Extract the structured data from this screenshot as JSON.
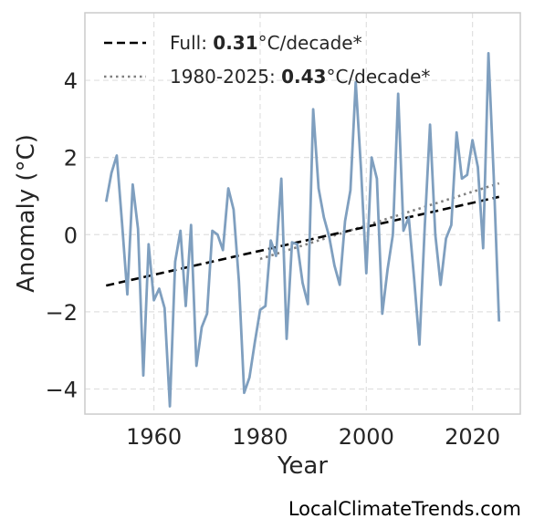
{
  "chart_data": {
    "type": "line",
    "xlabel": "Year",
    "ylabel": "Anomaly (°C)",
    "xlim": [
      1947,
      2029
    ],
    "ylim": [
      -4.65,
      5.75
    ],
    "xticks": [
      1960,
      1980,
      2000,
      2020
    ],
    "yticks": [
      -4,
      -2,
      0,
      2,
      4
    ],
    "ytick_labels": [
      "−4",
      "−2",
      "0",
      "2",
      "4"
    ],
    "grid": true,
    "legend_position": "top-left",
    "colors": {
      "series": "#7f9fbf",
      "full_trend": "#000000",
      "recent_trend": "#808080"
    },
    "series": [
      {
        "x": [
          1951,
          1952,
          1953,
          1954,
          1955,
          1956,
          1957,
          1958,
          1959,
          1960,
          1961,
          1962,
          1963,
          1964,
          1965,
          1966,
          1967,
          1968,
          1969,
          1970,
          1971,
          1972,
          1973,
          1974,
          1975,
          1976,
          1977,
          1978,
          1979,
          1980,
          1981,
          1982,
          1983,
          1984,
          1985,
          1986,
          1987,
          1988,
          1989,
          1990,
          1991,
          1992,
          1993,
          1994,
          1995,
          1996,
          1997,
          1998,
          1999,
          2000,
          2001,
          2002,
          2003,
          2004,
          2005,
          2006,
          2007,
          2008,
          2009,
          2010,
          2011,
          2012,
          2013,
          2014,
          2015,
          2016,
          2017,
          2018,
          2019,
          2020,
          2021,
          2022,
          2023,
          2024,
          2025
        ],
        "values": [
          0.85,
          1.6,
          2.05,
          0.3,
          -1.55,
          1.3,
          0.15,
          -3.65,
          -0.25,
          -1.7,
          -1.4,
          -1.9,
          -4.45,
          -0.7,
          0.1,
          -1.85,
          0.25,
          -3.4,
          -2.4,
          -2.05,
          0.1,
          0.0,
          -0.4,
          1.2,
          0.65,
          -1.2,
          -4.1,
          -3.7,
          -2.8,
          -1.95,
          -1.85,
          -0.15,
          -0.55,
          1.45,
          -2.7,
          -0.2,
          -0.25,
          -1.25,
          -1.8,
          3.25,
          1.2,
          0.45,
          -0.05,
          -0.8,
          -1.3,
          0.35,
          1.15,
          3.95,
          1.7,
          -1.0,
          2.0,
          1.45,
          -2.05,
          -0.9,
          0.0,
          3.65,
          0.1,
          0.45,
          -1.15,
          -2.85,
          0.2,
          2.85,
          0.0,
          -1.3,
          -0.1,
          0.25,
          2.65,
          1.45,
          1.55,
          2.45,
          1.75,
          -0.35,
          4.7,
          1.5,
          -2.25
        ]
      }
    ],
    "trends": [
      {
        "label_prefix": "Full: ",
        "rate": "0.31",
        "label_suffix": "°C/decade*",
        "x": [
          1951,
          2025
        ],
        "y": [
          -1.32,
          0.98
        ],
        "style": "dashed"
      },
      {
        "label_prefix": "1980-2025: ",
        "rate": "0.43",
        "label_suffix": "°C/decade*",
        "x": [
          1980,
          2025
        ],
        "y": [
          -0.63,
          1.33
        ],
        "style": "dotted"
      }
    ]
  },
  "footer": {
    "source": "LocalClimateTrends.com"
  }
}
